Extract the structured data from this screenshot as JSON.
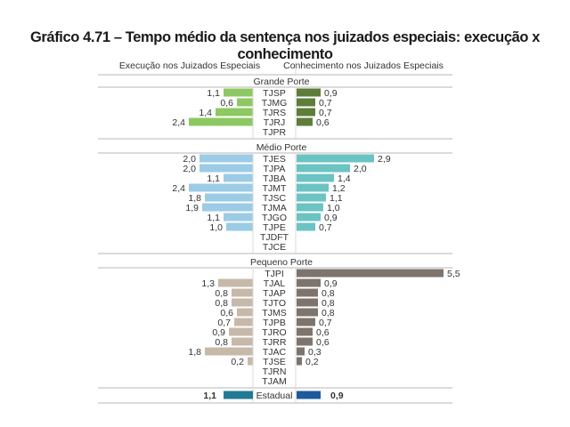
{
  "title": "Gráfico 4.71 – Tempo médio da sentença nos juizados especiais: execução x conhecimento",
  "chart_data": {
    "type": "bar",
    "orientation": "horizontal-butterfly",
    "title": "Gráfico 4.71 – Tempo médio da sentença nos juizados especiais: execução x conhecimento",
    "left_label": "Execução nos Juizados Especiais",
    "right_label": "Conhecimento nos Juizados Especiais",
    "groups": [
      {
        "name": "Grande Porte",
        "left_color": "#8dc862",
        "right_color": "#5e7d3a",
        "rows": [
          {
            "category": "TJSP",
            "left": 1.1,
            "right": 0.9
          },
          {
            "category": "TJMG",
            "left": 0.6,
            "right": 0.7
          },
          {
            "category": "TJRS",
            "left": 1.4,
            "right": 0.7
          },
          {
            "category": "TJRJ",
            "left": 2.4,
            "right": 0.6
          },
          {
            "category": "TJPR",
            "left": null,
            "right": null
          }
        ]
      },
      {
        "name": "Médio Porte",
        "left_color": "#9ccbe6",
        "right_color": "#6cc3c3",
        "rows": [
          {
            "category": "TJES",
            "left": 2.0,
            "right": 2.9
          },
          {
            "category": "TJPA",
            "left": 2.0,
            "right": 2.0
          },
          {
            "category": "TJBA",
            "left": 1.1,
            "right": 1.4
          },
          {
            "category": "TJMT",
            "left": 2.4,
            "right": 1.2
          },
          {
            "category": "TJSC",
            "left": 1.8,
            "right": 1.1
          },
          {
            "category": "TJMA",
            "left": 1.9,
            "right": 1.0
          },
          {
            "category": "TJGO",
            "left": 1.1,
            "right": 0.9
          },
          {
            "category": "TJPE",
            "left": 1.0,
            "right": 0.7
          },
          {
            "category": "TJDFT",
            "left": null,
            "right": null
          },
          {
            "category": "TJCE",
            "left": null,
            "right": null
          }
        ]
      },
      {
        "name": "Pequeno Porte",
        "left_color": "#c7b9aa",
        "right_color": "#7d756d",
        "rows": [
          {
            "category": "TJPI",
            "left": null,
            "right": 5.5
          },
          {
            "category": "TJAL",
            "left": 1.3,
            "right": 0.9
          },
          {
            "category": "TJAP",
            "left": 0.8,
            "right": 0.8
          },
          {
            "category": "TJTO",
            "left": 0.8,
            "right": 0.8
          },
          {
            "category": "TJMS",
            "left": 0.6,
            "right": 0.8
          },
          {
            "category": "TJPB",
            "left": 0.7,
            "right": 0.7
          },
          {
            "category": "TJRO",
            "left": 0.9,
            "right": 0.6
          },
          {
            "category": "TJRR",
            "left": 0.8,
            "right": 0.6
          },
          {
            "category": "TJAC",
            "left": 1.8,
            "right": 0.3
          },
          {
            "category": "TJSE",
            "left": 0.2,
            "right": 0.2
          },
          {
            "category": "TJRN",
            "left": null,
            "right": null
          },
          {
            "category": "TJAM",
            "left": null,
            "right": null
          }
        ]
      }
    ],
    "total": {
      "category": "Estadual",
      "left": 1.1,
      "right": 0.9,
      "left_color": "#237a94",
      "right_color": "#1c5a9c"
    },
    "value_format": "decimal-comma-1"
  }
}
